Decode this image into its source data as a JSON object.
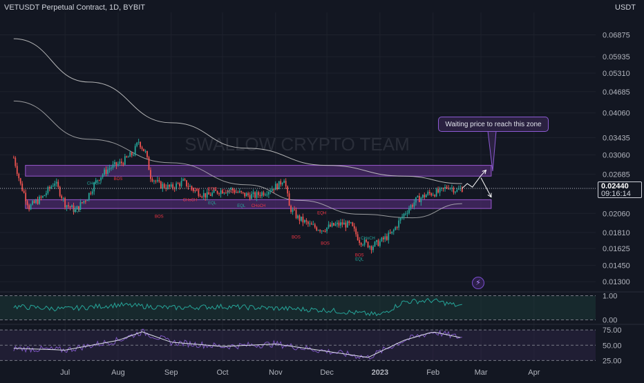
{
  "header": {
    "symbol_title": "VETUSDT Perpetual Contract, 1D, BYBIT",
    "currency": "USDT"
  },
  "watermark": "SWALLOW CRYPTO TEAM",
  "callout_text": "Waiting price to reach this zone",
  "price_tag": {
    "price": "0.02440",
    "countdown": "09:16:14"
  },
  "colors": {
    "background": "#131722",
    "up": "#26a69a",
    "down": "#ef5350",
    "zone_fill": "#4a2a6a",
    "zone_border": "#9b59d0",
    "ma_line": "#c8c8c8",
    "label_red": "#f23645",
    "label_teal": "#26a69a",
    "oscillator": "#7e57c2"
  },
  "chart_data": [
    {
      "type": "candlestick",
      "title": "VETUSDT Perpetual Contract, 1D, BYBIT",
      "y_scale": "log",
      "ylim": [
        0.0123,
        0.08
      ],
      "y_ticks": [
        "0.06875",
        "0.05935",
        "0.05310",
        "0.04685",
        "0.04060",
        "0.03435",
        "0.03060",
        "0.02685",
        "0.02440",
        "0.02060",
        "0.01810",
        "0.01625",
        "0.01450",
        "0.01300"
      ],
      "x_ticks": [
        "Jul",
        "Aug",
        "Sep",
        "Oct",
        "Nov",
        "Dec",
        "2023",
        "Feb",
        "Mar",
        "Apr"
      ],
      "price_path": [
        [
          "2022-06-01",
          0.03
        ],
        [
          "2022-06-05",
          0.025
        ],
        [
          "2022-06-10",
          0.0215
        ],
        [
          "2022-06-18",
          0.023
        ],
        [
          "2022-06-25",
          0.0255
        ],
        [
          "2022-07-01",
          0.022
        ],
        [
          "2022-07-07",
          0.021
        ],
        [
          "2022-07-14",
          0.023
        ],
        [
          "2022-07-20",
          0.026
        ],
        [
          "2022-07-27",
          0.028
        ],
        [
          "2022-08-03",
          0.029
        ],
        [
          "2022-08-10",
          0.031
        ],
        [
          "2022-08-13",
          0.0335
        ],
        [
          "2022-08-17",
          0.031
        ],
        [
          "2022-08-20",
          0.0265
        ],
        [
          "2022-08-25",
          0.025
        ],
        [
          "2022-09-01",
          0.0245
        ],
        [
          "2022-09-08",
          0.0255
        ],
        [
          "2022-09-15",
          0.024
        ],
        [
          "2022-09-22",
          0.0232
        ],
        [
          "2022-09-29",
          0.024
        ],
        [
          "2022-10-06",
          0.0242
        ],
        [
          "2022-10-13",
          0.0234
        ],
        [
          "2022-10-20",
          0.0232
        ],
        [
          "2022-10-27",
          0.024
        ],
        [
          "2022-11-03",
          0.025
        ],
        [
          "2022-11-06",
          0.0262
        ],
        [
          "2022-11-09",
          0.0215
        ],
        [
          "2022-11-14",
          0.02
        ],
        [
          "2022-11-21",
          0.019
        ],
        [
          "2022-11-28",
          0.0185
        ],
        [
          "2022-12-05",
          0.019
        ],
        [
          "2022-12-10",
          0.0192
        ],
        [
          "2022-12-15",
          0.019
        ],
        [
          "2022-12-20",
          0.0172
        ],
        [
          "2022-12-27",
          0.0165
        ],
        [
          "2023-01-01",
          0.017
        ],
        [
          "2023-01-08",
          0.018
        ],
        [
          "2023-01-15",
          0.0205
        ],
        [
          "2023-01-22",
          0.0225
        ],
        [
          "2023-01-29",
          0.0235
        ],
        [
          "2023-02-05",
          0.0238
        ],
        [
          "2023-02-10",
          0.0248
        ],
        [
          "2023-02-15",
          0.024
        ],
        [
          "2023-02-18",
          0.0244
        ]
      ],
      "moving_averages": [
        {
          "name": "MA (upper)",
          "values": [
            [
              "2022-06-01",
              0.067
            ],
            [
              "2022-07-15",
              0.05
            ],
            [
              "2022-09-01",
              0.038
            ],
            [
              "2022-10-15",
              0.032
            ],
            [
              "2022-12-01",
              0.0285
            ],
            [
              "2023-01-15",
              0.0265
            ],
            [
              "2023-02-18",
              0.0252
            ]
          ]
        },
        {
          "name": "MA (lower)",
          "values": [
            [
              "2022-06-01",
              0.044
            ],
            [
              "2022-07-15",
              0.034
            ],
            [
              "2022-09-01",
              0.029
            ],
            [
              "2022-10-15",
              0.025
            ],
            [
              "2022-11-15",
              0.0225
            ],
            [
              "2022-12-20",
              0.0205
            ],
            [
              "2023-01-20",
              0.02
            ],
            [
              "2023-02-18",
              0.022
            ]
          ]
        }
      ],
      "zones": [
        {
          "label": "supply",
          "range": [
            0.0265,
            0.0285
          ],
          "x_range": [
            "2022-06-01",
            "2023-03-07"
          ]
        },
        {
          "label": "demand",
          "range": [
            0.0213,
            0.0226
          ],
          "x_range": [
            "2022-06-01",
            "2023-03-07"
          ]
        }
      ],
      "annotations": [
        {
          "text": "BOS",
          "x": "2022-08-01",
          "y": 0.0258,
          "color": "red"
        },
        {
          "text": "CHoCH",
          "x": "2022-07-18",
          "y": 0.025,
          "color": "teal"
        },
        {
          "text": "EQL",
          "x": "2022-07-08",
          "y": 0.0208,
          "color": "teal"
        },
        {
          "text": "BOS",
          "x": "2022-08-25",
          "y": 0.02,
          "color": "red"
        },
        {
          "text": "EQH",
          "x": "2022-09-15",
          "y": 0.024,
          "color": "red"
        },
        {
          "text": "EQH",
          "x": "2022-09-25",
          "y": 0.0241,
          "color": "red"
        },
        {
          "text": "CHoCH",
          "x": "2022-09-12",
          "y": 0.0224,
          "color": "red"
        },
        {
          "text": "EQL",
          "x": "2022-09-25",
          "y": 0.0219,
          "color": "teal"
        },
        {
          "text": "CHoCH",
          "x": "2022-10-05",
          "y": 0.0237,
          "color": "red"
        },
        {
          "text": "EQL",
          "x": "2022-10-12",
          "y": 0.0215,
          "color": "teal"
        },
        {
          "text": "CHoCH",
          "x": "2022-10-22",
          "y": 0.0215,
          "color": "red"
        },
        {
          "text": "EQH",
          "x": "2022-11-28",
          "y": 0.0205,
          "color": "red"
        },
        {
          "text": "BOS",
          "x": "2022-11-13",
          "y": 0.0174,
          "color": "red"
        },
        {
          "text": "BOS",
          "x": "2022-11-30",
          "y": 0.0167,
          "color": "red"
        },
        {
          "text": "CHoCH",
          "x": "2022-12-25",
          "y": 0.0173,
          "color": "teal"
        },
        {
          "text": "BOS",
          "x": "2022-12-20",
          "y": 0.0154,
          "color": "red"
        },
        {
          "text": "EQL",
          "x": "2022-12-20",
          "y": 0.015,
          "color": "teal"
        }
      ],
      "projection": [
        [
          "2023-02-18",
          0.0244
        ],
        [
          "2023-02-21",
          0.0252
        ],
        [
          "2023-02-24",
          0.0246
        ],
        [
          "2023-03-01",
          0.0266
        ],
        [
          "2023-03-04",
          0.0276
        ]
      ],
      "projection_alt": [
        [
          "2023-03-01",
          0.0262
        ],
        [
          "2023-03-07",
          0.023
        ]
      ]
    },
    {
      "type": "line",
      "name": "indicator-1",
      "y_ticks": [
        "1.00",
        "0.00"
      ],
      "ylim": [
        -0.1,
        1.1
      ],
      "x": [
        "2022-06-01",
        "2022-07-01",
        "2022-08-01",
        "2022-09-01",
        "2022-10-01",
        "2022-11-01",
        "2022-12-01",
        "2023-01-01",
        "2023-01-15",
        "2023-02-01",
        "2023-02-18"
      ],
      "values": [
        0.55,
        0.45,
        0.62,
        0.5,
        0.55,
        0.48,
        0.4,
        0.2,
        0.75,
        0.8,
        0.55
      ]
    },
    {
      "type": "line",
      "name": "indicator-2",
      "y_ticks": [
        "75.00",
        "50.00",
        "25.00"
      ],
      "ylim": [
        22,
        82
      ],
      "x": [
        "2022-06-01",
        "2022-07-01",
        "2022-08-01",
        "2022-08-15",
        "2022-09-01",
        "2022-10-01",
        "2022-11-01",
        "2022-12-01",
        "2022-12-25",
        "2023-01-15",
        "2023-02-01",
        "2023-02-18"
      ],
      "values": [
        45,
        42,
        58,
        72,
        55,
        48,
        52,
        40,
        30,
        58,
        72,
        62
      ]
    }
  ]
}
